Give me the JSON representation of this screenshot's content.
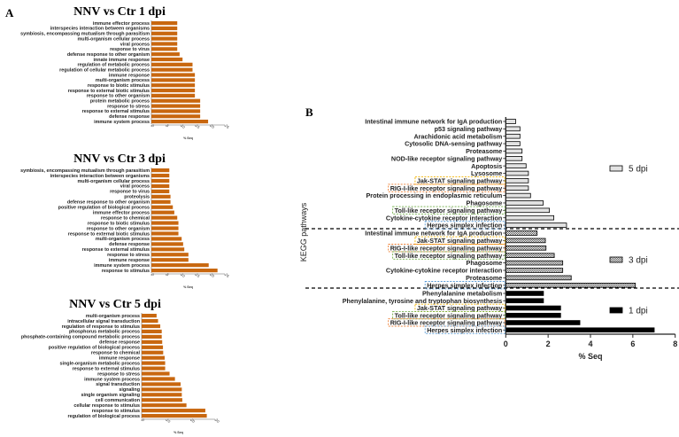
{
  "panels": {
    "a": "A",
    "b": "B"
  },
  "colors": {
    "bar_a": "#c8670f",
    "jak_stat": "#f2b200",
    "rig_i": "#ed7d31",
    "toll": "#70ad47",
    "herpes": "#5b9bd5",
    "bar_5dpi": "#e2e2e2",
    "bar_1dpi": "#000000"
  },
  "chart_data": [
    {
      "type": "bar",
      "orientation": "horizontal",
      "title": "NNV vs Ctr 1 dpi",
      "xlabel": "% Seq",
      "xlim": [
        0,
        25
      ],
      "xticks": [
        "0",
        "5",
        "10",
        "15",
        "20",
        "25"
      ],
      "categories": [
        "immune effector process",
        "interspecies interaction between organisms",
        "symbiosis, encompassing mutualism through parasitism",
        "multi-organism cellular process",
        "viral process",
        "response to virus",
        "defense response to other organism",
        "innate immune response",
        "regulation of metabolic process",
        "regulation of cellular metabolic process",
        "immune response",
        "multi-organism process",
        "response to biotic stimulus",
        "response to external biotic stimulus",
        "response to other organism",
        "protein metabolic process",
        "response to stress",
        "response to external stimulus",
        "defense response",
        "immune system process"
      ],
      "values": [
        8.8,
        8.8,
        8.8,
        8.8,
        8.8,
        8.8,
        9.6,
        10.6,
        14.0,
        14.0,
        14.8,
        14.8,
        14.8,
        14.8,
        14.8,
        16.6,
        16.6,
        16.6,
        16.6,
        19.3
      ]
    },
    {
      "type": "bar",
      "orientation": "horizontal",
      "title": "NNV vs Ctr 3 dpi",
      "xlabel": "% Seq",
      "xlim": [
        0,
        25
      ],
      "xticks": [
        "0",
        "5",
        "10",
        "15",
        "20",
        "25"
      ],
      "categories": [
        "symbiosis, encompassing mutualism through parasitism",
        "interspecies interaction between organisms",
        "multi-organism cellular process",
        "viral process",
        "response to virus",
        "proteolysis",
        "defense response to other organism",
        "positive regulation of biological process",
        "immune effector process",
        "response to chemical",
        "response to biotic stimulus",
        "response to other organism",
        "response to external biotic stimulus",
        "multi-organism process",
        "defense response",
        "response to external stimulus",
        "response to stress",
        "immune response",
        "immune system process",
        "response to stimulus"
      ],
      "values": [
        6.1,
        6.1,
        6.1,
        6.1,
        6.1,
        6.5,
        6.5,
        7.3,
        7.8,
        8.8,
        9.2,
        9.2,
        9.2,
        10.3,
        10.8,
        11.2,
        12.6,
        12.6,
        19.5,
        22.5
      ]
    },
    {
      "type": "bar",
      "orientation": "horizontal",
      "title": "NNV vs Ctr 5 dpi",
      "xlabel": "% Seq",
      "xlim": [
        0,
        30
      ],
      "xticks": [
        "0",
        "10",
        "20",
        "30"
      ],
      "categories": [
        "multi-organism process",
        "intracellular signal transduction",
        "regulation of response to stimulus",
        "phosphorus metabolic process",
        "phosphate-containing compound metabolic process",
        "defense response",
        "positive regulation of biological process",
        "response to chemical",
        "immune response",
        "single-organism metabolic process",
        "response to external stimulus",
        "response to stress",
        "immune system process",
        "signal transduction",
        "signaling",
        "single organism signaling",
        "cell communication",
        "cellular response to stimulus",
        "response to stimulus",
        "regulation of biological process"
      ],
      "values": [
        6.1,
        6.7,
        7.6,
        8.2,
        8.2,
        8.4,
        8.7,
        8.8,
        9.4,
        9.6,
        9.6,
        11.4,
        13.6,
        15.9,
        16.4,
        16.4,
        16.6,
        18.3,
        26.0,
        26.6
      ]
    },
    {
      "type": "bar",
      "orientation": "horizontal",
      "xlabel": "% Seq",
      "ylabel": "KEGG pathways",
      "xlim": [
        0,
        8
      ],
      "xticks": [
        "0",
        "2",
        "4",
        "6",
        "8"
      ],
      "legend": "right",
      "series": [
        {
          "name": "5 dpi",
          "pattern": "light-gray",
          "categories": [
            "Intestinal immune network for IgA production",
            "p53 signaling pathway",
            "Arachidonic acid metabolism",
            "Cytosolic DNA-sensing pathway",
            "Proteasome",
            "NOD-like receptor signaling pathway",
            "Apoptosis",
            "Lysosome",
            "Jak-STAT signaling pathway",
            "RIG-I-like receptor signaling pathway",
            "Protein processing in endoplasmic reticulum",
            "Phagosome",
            "Toll-like receptor signaling pathway",
            "Cytokine-cytokine receptor interaction",
            "Herpes simplex infection"
          ],
          "values": [
            0.47,
            0.67,
            0.67,
            0.67,
            0.77,
            0.77,
            0.96,
            1.07,
            1.07,
            1.07,
            1.17,
            1.77,
            2.06,
            2.27,
            2.87
          ],
          "highlights": [
            "",
            "",
            "",
            "",
            "",
            "",
            "",
            "",
            "jak_stat",
            "rig_i",
            "",
            "",
            "toll",
            "",
            "herpes"
          ]
        },
        {
          "name": "3 dpi",
          "pattern": "dotted",
          "categories": [
            "Intestinal immune network for IgA production",
            "Jak-STAT signaling pathway",
            "RIG-I-like receptor signaling pathway",
            "Toll-like receptor signaling pathway",
            "Phagosome",
            "Cytokine-cytokine receptor interaction",
            "Proteasome",
            "Herpes simplex infection"
          ],
          "values": [
            1.48,
            1.87,
            1.9,
            2.29,
            2.69,
            2.69,
            3.09,
            6.12
          ],
          "highlights": [
            "",
            "jak_stat",
            "rig_i",
            "toll",
            "",
            "",
            "",
            "herpes"
          ]
        },
        {
          "name": "1 dpi",
          "pattern": "black",
          "categories": [
            "Phenylalanine metabolism",
            "Phenylalanine, tyrosine and tryptophan biosynthesis",
            "Jak-STAT signaling pathway",
            "Toll-like receptor signaling pathway",
            "RIG-I-like receptor signaling pathway",
            "Herpes simplex infection"
          ],
          "values": [
            1.78,
            1.78,
            2.59,
            2.59,
            3.5,
            7.01
          ],
          "highlights": [
            "",
            "",
            "jak_stat",
            "toll",
            "rig_i",
            "herpes"
          ]
        }
      ]
    }
  ]
}
